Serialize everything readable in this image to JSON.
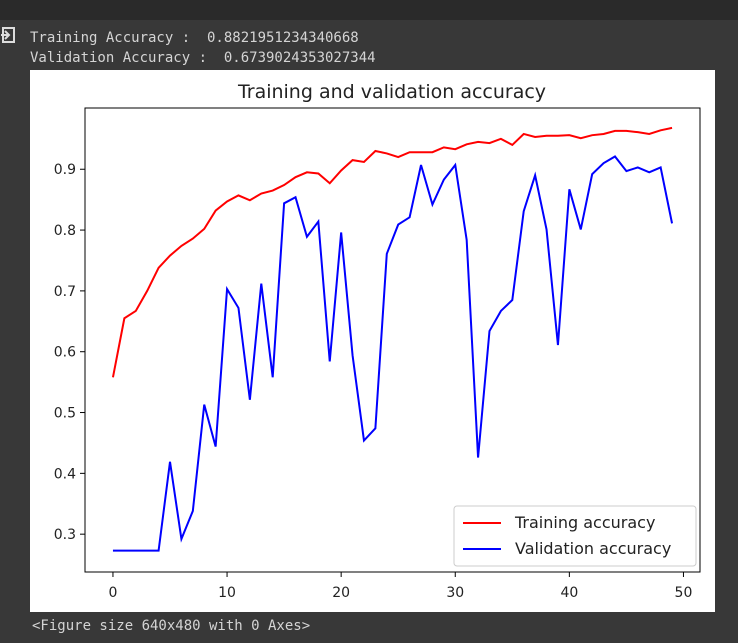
{
  "output": {
    "lines": [
      "Training Accuracy :  0.8821951234340668",
      "Validation Accuracy :  0.6739024353027344"
    ],
    "footer": "<Figure size 640x480 with 0 Axes>"
  },
  "chart_data": {
    "type": "line",
    "title": "Training and validation accuracy",
    "x": [
      0,
      1,
      2,
      3,
      4,
      5,
      6,
      7,
      8,
      9,
      10,
      11,
      12,
      13,
      14,
      15,
      16,
      17,
      18,
      19,
      20,
      21,
      22,
      23,
      24,
      25,
      26,
      27,
      28,
      29,
      30,
      31,
      32,
      33,
      34,
      35,
      36,
      37,
      38,
      39,
      40,
      41,
      42,
      43,
      44,
      45,
      46,
      47,
      48,
      49
    ],
    "series": [
      {
        "name": "Training accuracy",
        "color": "#ff0000",
        "values": [
          0.558,
          0.655,
          0.667,
          0.7,
          0.738,
          0.758,
          0.774,
          0.786,
          0.802,
          0.832,
          0.847,
          0.857,
          0.849,
          0.86,
          0.865,
          0.874,
          0.887,
          0.895,
          0.893,
          0.877,
          0.898,
          0.915,
          0.912,
          0.93,
          0.926,
          0.92,
          0.928,
          0.928,
          0.928,
          0.936,
          0.933,
          0.941,
          0.945,
          0.943,
          0.95,
          0.94,
          0.958,
          0.953,
          0.955,
          0.955,
          0.956,
          0.951,
          0.956,
          0.958,
          0.963,
          0.963,
          0.961,
          0.958,
          0.964,
          0.968
        ]
      },
      {
        "name": "Validation accuracy",
        "color": "#0000ff",
        "values": [
          0.273,
          0.273,
          0.273,
          0.273,
          0.273,
          0.419,
          0.292,
          0.338,
          0.513,
          0.444,
          0.703,
          0.672,
          0.521,
          0.712,
          0.558,
          0.844,
          0.854,
          0.789,
          0.814,
          0.584,
          0.796,
          0.594,
          0.454,
          0.474,
          0.761,
          0.809,
          0.821,
          0.907,
          0.842,
          0.883,
          0.907,
          0.784,
          0.426,
          0.634,
          0.667,
          0.685,
          0.831,
          0.89,
          0.801,
          0.611,
          0.867,
          0.801,
          0.892,
          0.91,
          0.921,
          0.897,
          0.903,
          0.895,
          0.903,
          0.811
        ]
      }
    ],
    "xlim": [
      -2.45,
      51.45
    ],
    "ylim": [
      0.2378,
      1.0007
    ],
    "xticks": [
      0,
      10,
      20,
      30,
      40,
      50
    ],
    "yticks": [
      0.3,
      0.4,
      0.5,
      0.6,
      0.7,
      0.8,
      0.9
    ],
    "legend": "lower right"
  }
}
